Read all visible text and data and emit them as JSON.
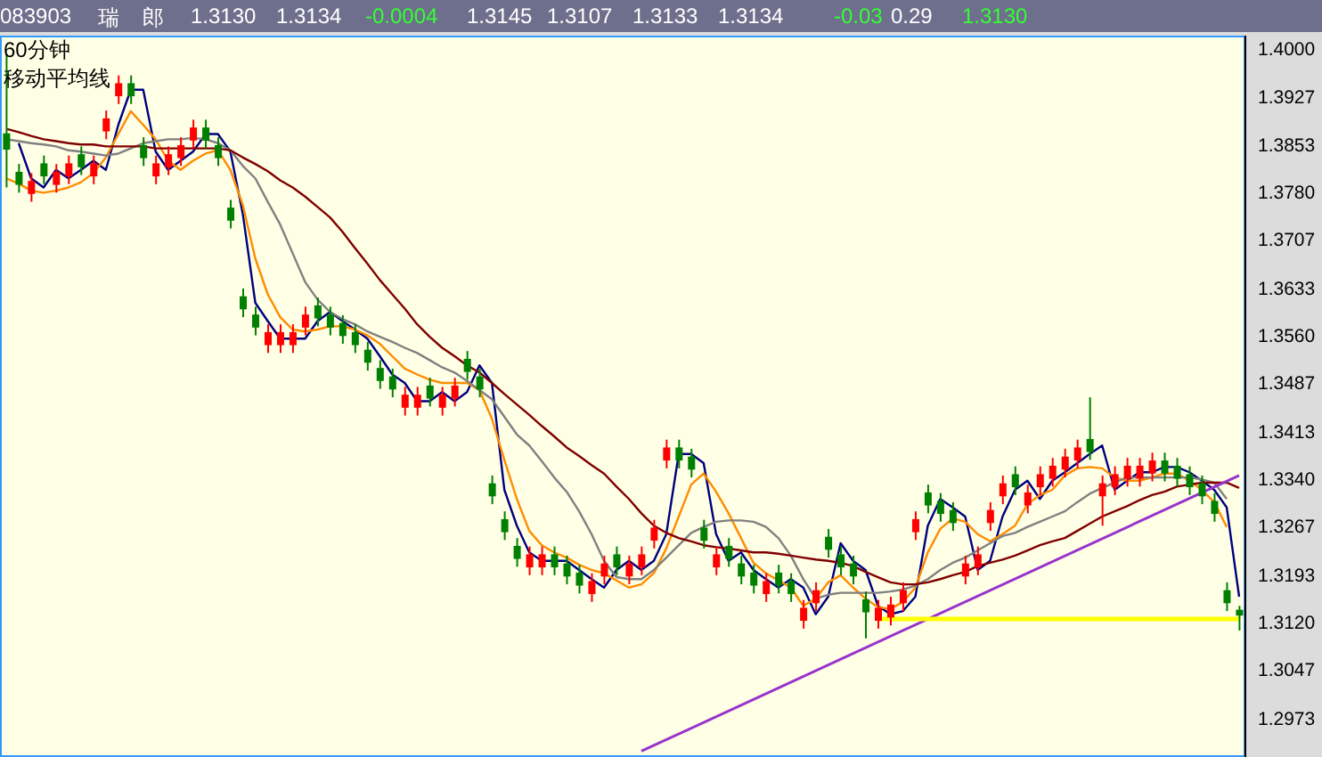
{
  "chart_data": {
    "type": "candlestick",
    "title": "60分钟",
    "subtitle": "移动平均线",
    "annotations": [
      "083903",
      "瑞",
      "郎",
      "1.3130",
      "1.3134",
      "-0.0004",
      "1.3145",
      "1.3107",
      "1.3133",
      "1.3134",
      "-0.03",
      "0.29",
      "1.3130"
    ],
    "categories": [
      null,
      null,
      null,
      null,
      null,
      null,
      null,
      null,
      null,
      null,
      null,
      null,
      null,
      null,
      null,
      null,
      null,
      null,
      null,
      null,
      null,
      null,
      null,
      null,
      null,
      null,
      null,
      null,
      null,
      null,
      null,
      null,
      null,
      null,
      null,
      null,
      null,
      null,
      null,
      null,
      null,
      null,
      null,
      null,
      null,
      null,
      null,
      null,
      null,
      null,
      null,
      null,
      null,
      null,
      null,
      null,
      null,
      null,
      null,
      null,
      null,
      null,
      null,
      null,
      null,
      null,
      null,
      null,
      null,
      null,
      null,
      null,
      null,
      null,
      null,
      null,
      null,
      null,
      null,
      null,
      null,
      null,
      null,
      null,
      null,
      null,
      null,
      null,
      null,
      null,
      null,
      null,
      null,
      null,
      null,
      null,
      null,
      null,
      null,
      null
    ],
    "ohlc": [
      [
        1.387,
        1.3992,
        1.3787,
        1.3845
      ],
      [
        1.3811,
        1.3823,
        1.3779,
        1.3791
      ],
      [
        1.3777,
        1.3809,
        1.3765,
        1.3797
      ],
      [
        1.3824,
        1.3836,
        1.3792,
        1.3804
      ],
      [
        1.3791,
        1.3823,
        1.3779,
        1.3811
      ],
      [
        1.3804,
        1.3836,
        1.3792,
        1.3824
      ],
      [
        1.3838,
        1.385,
        1.3806,
        1.3818
      ],
      [
        1.3804,
        1.3836,
        1.3792,
        1.3824
      ],
      [
        1.3873,
        1.3905,
        1.3861,
        1.3893
      ],
      [
        1.3927,
        1.3959,
        1.3915,
        1.3947
      ],
      [
        1.3947,
        1.3959,
        1.3915,
        1.3927
      ],
      [
        1.3852,
        1.3864,
        1.382,
        1.3832
      ],
      [
        1.3804,
        1.3836,
        1.3792,
        1.3824
      ],
      [
        1.3818,
        1.385,
        1.3806,
        1.3838
      ],
      [
        1.3832,
        1.3864,
        1.382,
        1.3852
      ],
      [
        1.3859,
        1.3891,
        1.3847,
        1.3879
      ],
      [
        1.3879,
        1.3891,
        1.3847,
        1.3859
      ],
      [
        1.3852,
        1.3864,
        1.382,
        1.3832
      ],
      [
        1.3756,
        1.3768,
        1.3724,
        1.3736
      ],
      [
        1.362,
        1.3632,
        1.3588,
        1.36
      ],
      [
        1.3592,
        1.3604,
        1.356,
        1.3572
      ],
      [
        1.3545,
        1.3577,
        1.3533,
        1.3565
      ],
      [
        1.3545,
        1.3577,
        1.3533,
        1.3565
      ],
      [
        1.3545,
        1.3577,
        1.3533,
        1.3565
      ],
      [
        1.3572,
        1.3604,
        1.356,
        1.3592
      ],
      [
        1.3606,
        1.3618,
        1.3574,
        1.3586
      ],
      [
        1.3592,
        1.3604,
        1.356,
        1.3572
      ],
      [
        1.3579,
        1.3591,
        1.3547,
        1.3559
      ],
      [
        1.3565,
        1.3577,
        1.3533,
        1.3545
      ],
      [
        1.3538,
        1.355,
        1.3506,
        1.3518
      ],
      [
        1.351,
        1.3522,
        1.3478,
        1.349
      ],
      [
        1.3497,
        1.3509,
        1.3465,
        1.3477
      ],
      [
        1.3449,
        1.3481,
        1.3437,
        1.3469
      ],
      [
        1.3449,
        1.3481,
        1.3437,
        1.3469
      ],
      [
        1.3483,
        1.3495,
        1.3451,
        1.3463
      ],
      [
        1.3449,
        1.3481,
        1.3437,
        1.3469
      ],
      [
        1.3463,
        1.3495,
        1.3451,
        1.3483
      ],
      [
        1.3524,
        1.3536,
        1.3492,
        1.3504
      ],
      [
        1.3497,
        1.3509,
        1.3465,
        1.3477
      ],
      [
        1.3333,
        1.3345,
        1.3301,
        1.3313
      ],
      [
        1.3278,
        1.329,
        1.3246,
        1.3258
      ],
      [
        1.3237,
        1.3249,
        1.3205,
        1.3217
      ],
      [
        1.3204,
        1.3236,
        1.3192,
        1.3224
      ],
      [
        1.3204,
        1.3236,
        1.3192,
        1.3224
      ],
      [
        1.3224,
        1.3236,
        1.3192,
        1.3204
      ],
      [
        1.321,
        1.3222,
        1.3178,
        1.319
      ],
      [
        1.3196,
        1.3208,
        1.3164,
        1.3176
      ],
      [
        1.3163,
        1.3195,
        1.3151,
        1.3183
      ],
      [
        1.319,
        1.3222,
        1.3178,
        1.321
      ],
      [
        1.3224,
        1.3236,
        1.3192,
        1.3204
      ],
      [
        1.319,
        1.3222,
        1.3178,
        1.321
      ],
      [
        1.3204,
        1.3236,
        1.3192,
        1.3224
      ],
      [
        1.3245,
        1.3277,
        1.3233,
        1.3265
      ],
      [
        1.3368,
        1.34,
        1.3356,
        1.3388
      ],
      [
        1.3388,
        1.34,
        1.3356,
        1.3368
      ],
      [
        1.3374,
        1.3386,
        1.3342,
        1.3354
      ],
      [
        1.3265,
        1.3277,
        1.3233,
        1.3245
      ],
      [
        1.3204,
        1.3236,
        1.3192,
        1.3224
      ],
      [
        1.3237,
        1.3249,
        1.3205,
        1.3217
      ],
      [
        1.321,
        1.3222,
        1.3178,
        1.319
      ],
      [
        1.3196,
        1.3208,
        1.3164,
        1.3176
      ],
      [
        1.3163,
        1.3195,
        1.3151,
        1.3183
      ],
      [
        1.3196,
        1.3208,
        1.3164,
        1.3176
      ],
      [
        1.3183,
        1.3195,
        1.3151,
        1.3163
      ],
      [
        1.3122,
        1.3154,
        1.311,
        1.3142
      ],
      [
        1.3149,
        1.3181,
        1.3137,
        1.3169
      ],
      [
        1.3251,
        1.3263,
        1.3219,
        1.3231
      ],
      [
        1.3224,
        1.3236,
        1.3192,
        1.3204
      ],
      [
        1.321,
        1.3222,
        1.3178,
        1.319
      ],
      [
        1.3155,
        1.3167,
        1.3095,
        1.3135
      ],
      [
        1.3122,
        1.3154,
        1.311,
        1.3142
      ],
      [
        1.3127,
        1.3159,
        1.3115,
        1.3147
      ],
      [
        1.3149,
        1.3181,
        1.3137,
        1.3169
      ],
      [
        1.3258,
        1.329,
        1.3246,
        1.3278
      ],
      [
        1.3319,
        1.3331,
        1.3287,
        1.3299
      ],
      [
        1.3306,
        1.3318,
        1.3274,
        1.3286
      ],
      [
        1.3292,
        1.3304,
        1.326,
        1.3272
      ],
      [
        1.319,
        1.3222,
        1.3178,
        1.321
      ],
      [
        1.3204,
        1.3236,
        1.3192,
        1.3224
      ],
      [
        1.3272,
        1.3304,
        1.326,
        1.3292
      ],
      [
        1.3313,
        1.3345,
        1.3301,
        1.3333
      ],
      [
        1.3347,
        1.3359,
        1.3315,
        1.3327
      ],
      [
        1.3299,
        1.3331,
        1.3287,
        1.3319
      ],
      [
        1.3327,
        1.3359,
        1.3315,
        1.3347
      ],
      [
        1.334,
        1.3372,
        1.3328,
        1.336
      ],
      [
        1.3354,
        1.3386,
        1.3342,
        1.3374
      ],
      [
        1.3368,
        1.34,
        1.3356,
        1.3388
      ],
      [
        1.3401,
        1.3465,
        1.3369,
        1.3381
      ],
      [
        1.3313,
        1.3345,
        1.3268,
        1.3333
      ],
      [
        1.3327,
        1.3359,
        1.3315,
        1.3347
      ],
      [
        1.334,
        1.3372,
        1.3328,
        1.336
      ],
      [
        1.334,
        1.3372,
        1.3328,
        1.336
      ],
      [
        1.3348,
        1.338,
        1.3336,
        1.3368
      ],
      [
        1.3368,
        1.338,
        1.3336,
        1.3348
      ],
      [
        1.336,
        1.3372,
        1.3328,
        1.334
      ],
      [
        1.3347,
        1.3359,
        1.3315,
        1.3327
      ],
      [
        1.3333,
        1.3345,
        1.3301,
        1.3313
      ],
      [
        1.3306,
        1.3318,
        1.3274,
        1.3286
      ],
      [
        1.3169,
        1.3181,
        1.3137,
        1.3149
      ],
      [
        1.3139,
        1.3145,
        1.3107,
        1.313
      ]
    ],
    "series": [
      {
        "type": "line",
        "color": "#000080",
        "values": [
          null,
          1.3855,
          1.3801,
          1.3787,
          1.3814,
          1.3801,
          1.3814,
          1.3828,
          1.3814,
          1.3883,
          1.3937,
          1.3937,
          1.3842,
          1.3814,
          1.3828,
          1.3842,
          1.3869,
          1.3869,
          1.3842,
          1.3746,
          1.361,
          1.3582,
          1.3555,
          1.3555,
          1.3555,
          1.3582,
          1.3596,
          1.3582,
          1.3569,
          1.3555,
          1.3528,
          1.35,
          1.3487,
          1.3459,
          1.3459,
          1.3473,
          1.3459,
          1.3473,
          1.3514,
          1.3487,
          1.3323,
          1.3268,
          1.3227,
          1.3214,
          1.3214,
          1.3214,
          1.32,
          1.3186,
          1.3173,
          1.32,
          1.3214,
          1.32,
          1.3214,
          1.3255,
          1.3378,
          1.3378,
          1.3364,
          1.3255,
          1.3214,
          1.3227,
          1.32,
          1.3186,
          1.3173,
          1.3186,
          1.3173,
          1.3132,
          1.3159,
          1.3241,
          1.3214,
          1.32,
          1.3145,
          1.3132,
          1.3137,
          1.3159,
          1.3268,
          1.3309,
          1.3296,
          1.3282,
          1.32,
          1.3214,
          1.3282,
          1.3323,
          1.3337,
          1.3309,
          1.3337,
          1.335,
          1.3364,
          1.3378,
          1.3391,
          1.3323,
          1.3337,
          1.335,
          1.335,
          1.3358,
          1.3358,
          1.335,
          1.3337,
          1.3323,
          1.3296,
          1.3159
        ]
      },
      {
        "type": "line",
        "color": "#ff8c00",
        "values": [
          1.3801,
          1.3793,
          1.3782,
          1.3779,
          1.3782,
          1.3787,
          1.3795,
          1.3809,
          1.3833,
          1.3869,
          1.3904,
          1.3883,
          1.3861,
          1.3828,
          1.3814,
          1.3828,
          1.3839,
          1.3844,
          1.3814,
          1.376,
          1.3678,
          1.3623,
          1.3588,
          1.3569,
          1.3566,
          1.3569,
          1.3574,
          1.3574,
          1.3569,
          1.356,
          1.3547,
          1.3528,
          1.3509,
          1.35,
          1.3492,
          1.3487,
          1.3487,
          1.3487,
          1.3476,
          1.3432,
          1.3369,
          1.3309,
          1.326,
          1.3238,
          1.3227,
          1.3219,
          1.3208,
          1.32,
          1.3195,
          1.3184,
          1.3173,
          1.3178,
          1.3195,
          1.3233,
          1.3282,
          1.3331,
          1.3348,
          1.332,
          1.3287,
          1.3249,
          1.3211,
          1.3195,
          1.3184,
          1.3173,
          1.3145,
          1.3156,
          1.3181,
          1.3192,
          1.3173,
          1.3156,
          1.3143,
          1.314,
          1.3151,
          1.3173,
          1.3227,
          1.3263,
          1.3279,
          1.3274,
          1.3255,
          1.3244,
          1.3255,
          1.3268,
          1.3301,
          1.3315,
          1.3323,
          1.3345,
          1.3356,
          1.3358,
          1.3356,
          1.3342,
          1.3337,
          1.3337,
          1.3342,
          1.3348,
          1.3348,
          1.3337,
          1.3323,
          1.3304,
          1.3266,
          null
        ]
      },
      {
        "type": "line",
        "color": "#808080",
        "values": [
          1.3861,
          1.3858,
          1.3855,
          1.3853,
          1.385,
          1.3844,
          1.3842,
          1.3839,
          1.3836,
          1.3839,
          1.3847,
          1.3855,
          1.3858,
          1.3861,
          1.3861,
          1.3863,
          1.3861,
          1.3855,
          1.3844,
          1.382,
          1.3801,
          1.3765,
          1.373,
          1.3686,
          1.3642,
          1.3615,
          1.3596,
          1.3585,
          1.3577,
          1.3566,
          1.3558,
          1.355,
          1.3541,
          1.3533,
          1.3522,
          1.3511,
          1.3503,
          1.349,
          1.3476,
          1.3462,
          1.3435,
          1.3408,
          1.3391,
          1.3367,
          1.3342,
          1.332,
          1.329,
          1.3255,
          1.3214,
          1.3189,
          1.3186,
          1.3186,
          1.32,
          1.3219,
          1.3238,
          1.3257,
          1.3266,
          1.3274,
          1.3276,
          1.3276,
          1.3274,
          1.3266,
          1.3249,
          1.3222,
          1.3186,
          1.3156,
          1.3162,
          1.3165,
          1.3165,
          1.3165,
          1.3165,
          1.3167,
          1.317,
          1.3176,
          1.3186,
          1.32,
          1.3211,
          1.3219,
          1.323,
          1.3241,
          1.3252,
          1.3257,
          1.3266,
          1.3274,
          1.3282,
          1.329,
          1.3304,
          1.3317,
          1.3326,
          1.3334,
          1.3342,
          1.3342,
          1.3342,
          1.3342,
          1.3342,
          1.3342,
          1.3339,
          1.3334,
          1.3309,
          null
        ]
      },
      {
        "type": "line",
        "color": "#800000",
        "values": [
          1.3877,
          1.3872,
          1.3866,
          1.3861,
          1.3858,
          1.3855,
          1.3853,
          1.3853,
          1.385,
          1.385,
          1.385,
          1.385,
          1.3847,
          1.3847,
          1.3847,
          1.3847,
          1.3847,
          1.3847,
          1.3844,
          1.3833,
          1.3823,
          1.3812,
          1.3798,
          1.3787,
          1.3773,
          1.3757,
          1.3741,
          1.3719,
          1.3694,
          1.367,
          1.3645,
          1.3623,
          1.3601,
          1.3577,
          1.3558,
          1.3541,
          1.3528,
          1.3514,
          1.3503,
          1.3487,
          1.347,
          1.3454,
          1.3438,
          1.3421,
          1.3405,
          1.3388,
          1.3375,
          1.3361,
          1.3348,
          1.3328,
          1.3309,
          1.3287,
          1.3268,
          1.3257,
          1.3249,
          1.3244,
          1.3238,
          1.3235,
          1.3233,
          1.323,
          1.3227,
          1.3227,
          1.3225,
          1.3222,
          1.3219,
          1.3216,
          1.3214,
          1.3211,
          1.3206,
          1.3197,
          1.3189,
          1.3181,
          1.3178,
          1.3178,
          1.3181,
          1.3186,
          1.3192,
          1.3197,
          1.3206,
          1.3211,
          1.3216,
          1.3222,
          1.323,
          1.3238,
          1.3244,
          1.3249,
          1.326,
          1.3271,
          1.3282,
          1.329,
          1.3298,
          1.3307,
          1.3315,
          1.332,
          1.3328,
          1.3331,
          1.3334,
          1.3334,
          1.3334,
          1.3326
        ]
      },
      {
        "type": "line",
        "color": "#9933cc",
        "values": [
          null,
          null,
          null,
          null,
          null,
          null,
          null,
          null,
          null,
          null,
          null,
          null,
          null,
          null,
          null,
          null,
          null,
          null,
          null,
          null,
          null,
          null,
          null,
          null,
          null,
          null,
          null,
          null,
          null,
          null,
          null,
          null,
          null,
          null,
          null,
          null,
          null,
          null,
          null,
          null,
          null,
          null,
          null,
          null,
          null,
          null,
          null,
          null,
          null,
          null,
          null,
          1.2922,
          null,
          null,
          null,
          null,
          null,
          null,
          null,
          null,
          null,
          null,
          null,
          null,
          null,
          null,
          null,
          null,
          null,
          null,
          null,
          null,
          null,
          null,
          null,
          null,
          null,
          null,
          null,
          null,
          null,
          null,
          null,
          null,
          null,
          null,
          null,
          null,
          null,
          null,
          null,
          null,
          null,
          null,
          null,
          null,
          null,
          null,
          null,
          1.3345
        ]
      },
      {
        "type": "line",
        "color": "#ffff00",
        "values": [
          null,
          null,
          null,
          null,
          null,
          null,
          null,
          null,
          null,
          null,
          null,
          null,
          null,
          null,
          null,
          null,
          null,
          null,
          null,
          null,
          null,
          null,
          null,
          null,
          null,
          null,
          null,
          null,
          null,
          null,
          null,
          null,
          null,
          null,
          null,
          null,
          null,
          null,
          null,
          null,
          null,
          null,
          null,
          null,
          null,
          null,
          null,
          null,
          null,
          null,
          null,
          null,
          null,
          null,
          null,
          null,
          null,
          null,
          null,
          null,
          null,
          null,
          null,
          null,
          null,
          null,
          null,
          null,
          null,
          null,
          1.3125,
          null,
          null,
          null,
          null,
          null,
          null,
          null,
          null,
          null,
          null,
          null,
          null,
          null,
          null,
          null,
          null,
          null,
          null,
          null,
          null,
          null,
          null,
          null,
          null,
          null,
          null,
          null,
          null,
          1.3125
        ]
      }
    ],
    "ylim": [
      1.2913,
      1.402
    ],
    "yticks": [
      {
        "value": 1.4,
        "label": "1.4000"
      },
      1.3927,
      1.3853,
      {
        "value": 1.378,
        "label": "1.3780"
      },
      1.3707,
      1.3633,
      {
        "value": 1.356,
        "label": "1.3560"
      },
      1.3487,
      1.3413,
      {
        "value": 1.334,
        "label": "1.3340"
      },
      1.3267,
      1.3193,
      {
        "value": 1.312,
        "label": "1.3120"
      },
      1.3047,
      1.2973
    ],
    "tick_labels": "y",
    "grid": false,
    "marker": "none"
  }
}
